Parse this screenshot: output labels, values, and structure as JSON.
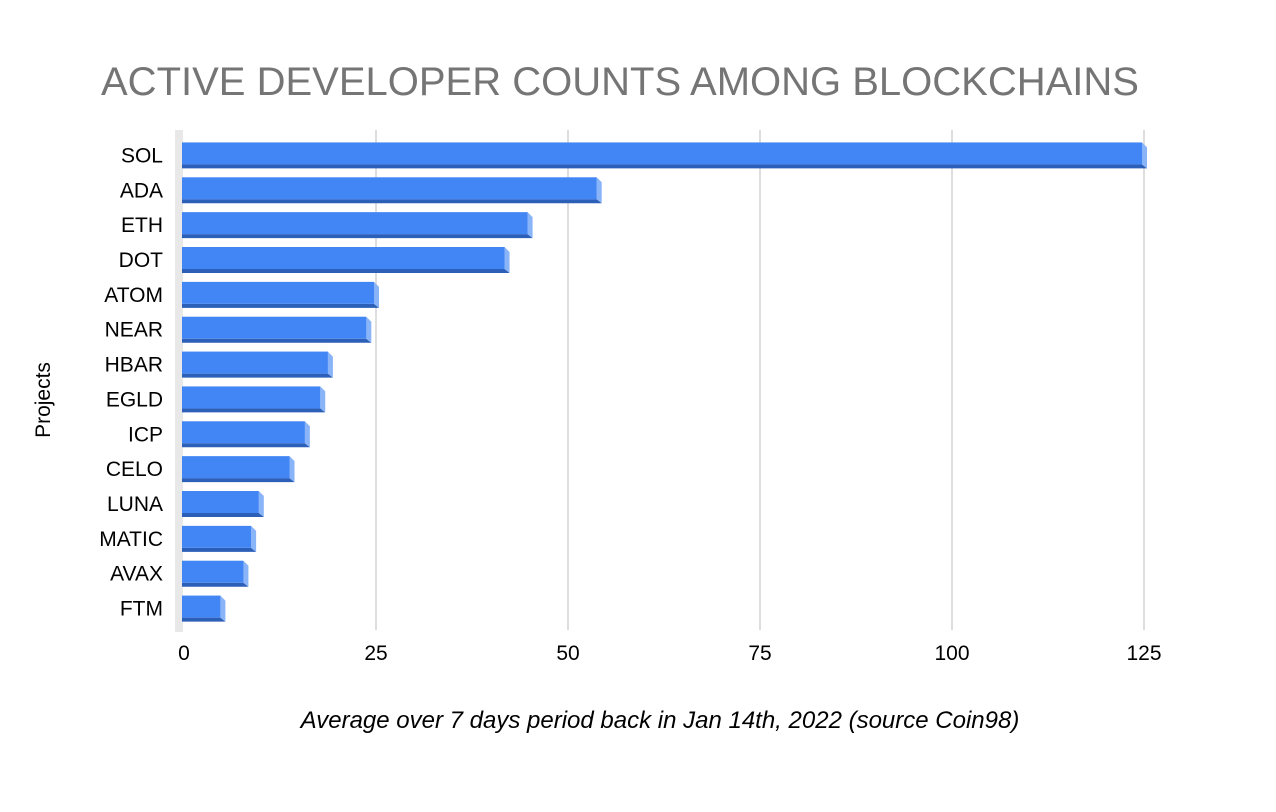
{
  "chart_data": {
    "type": "bar",
    "orientation": "horizontal",
    "title": "ACTIVE DEVELOPER COUNTS AMONG BLOCKCHAINS",
    "xlabel": "Average over 7 days period back in Jan 14th, 2022 (source Coin98)",
    "ylabel": "Projects",
    "categories": [
      "SOL",
      "ADA",
      "ETH",
      "DOT",
      "ATOM",
      "NEAR",
      "HBAR",
      "EGLD",
      "ICP",
      "CELO",
      "LUNA",
      "MATIC",
      "AVAX",
      "FTM"
    ],
    "values": [
      125,
      54,
      45,
      42,
      25,
      24,
      19,
      18,
      16,
      14,
      10,
      9,
      8,
      5
    ],
    "xlim": [
      0,
      125
    ],
    "xticks": [
      "0",
      "25",
      "50",
      "75",
      "100",
      "125"
    ],
    "grid": true,
    "legend": "none",
    "colors": {
      "bar_face": "#4285f4",
      "bar_shadow": "#2c5fb8",
      "bar_cap": "#8ab4f8",
      "grid": "#cccccc",
      "title": "#757575"
    }
  }
}
